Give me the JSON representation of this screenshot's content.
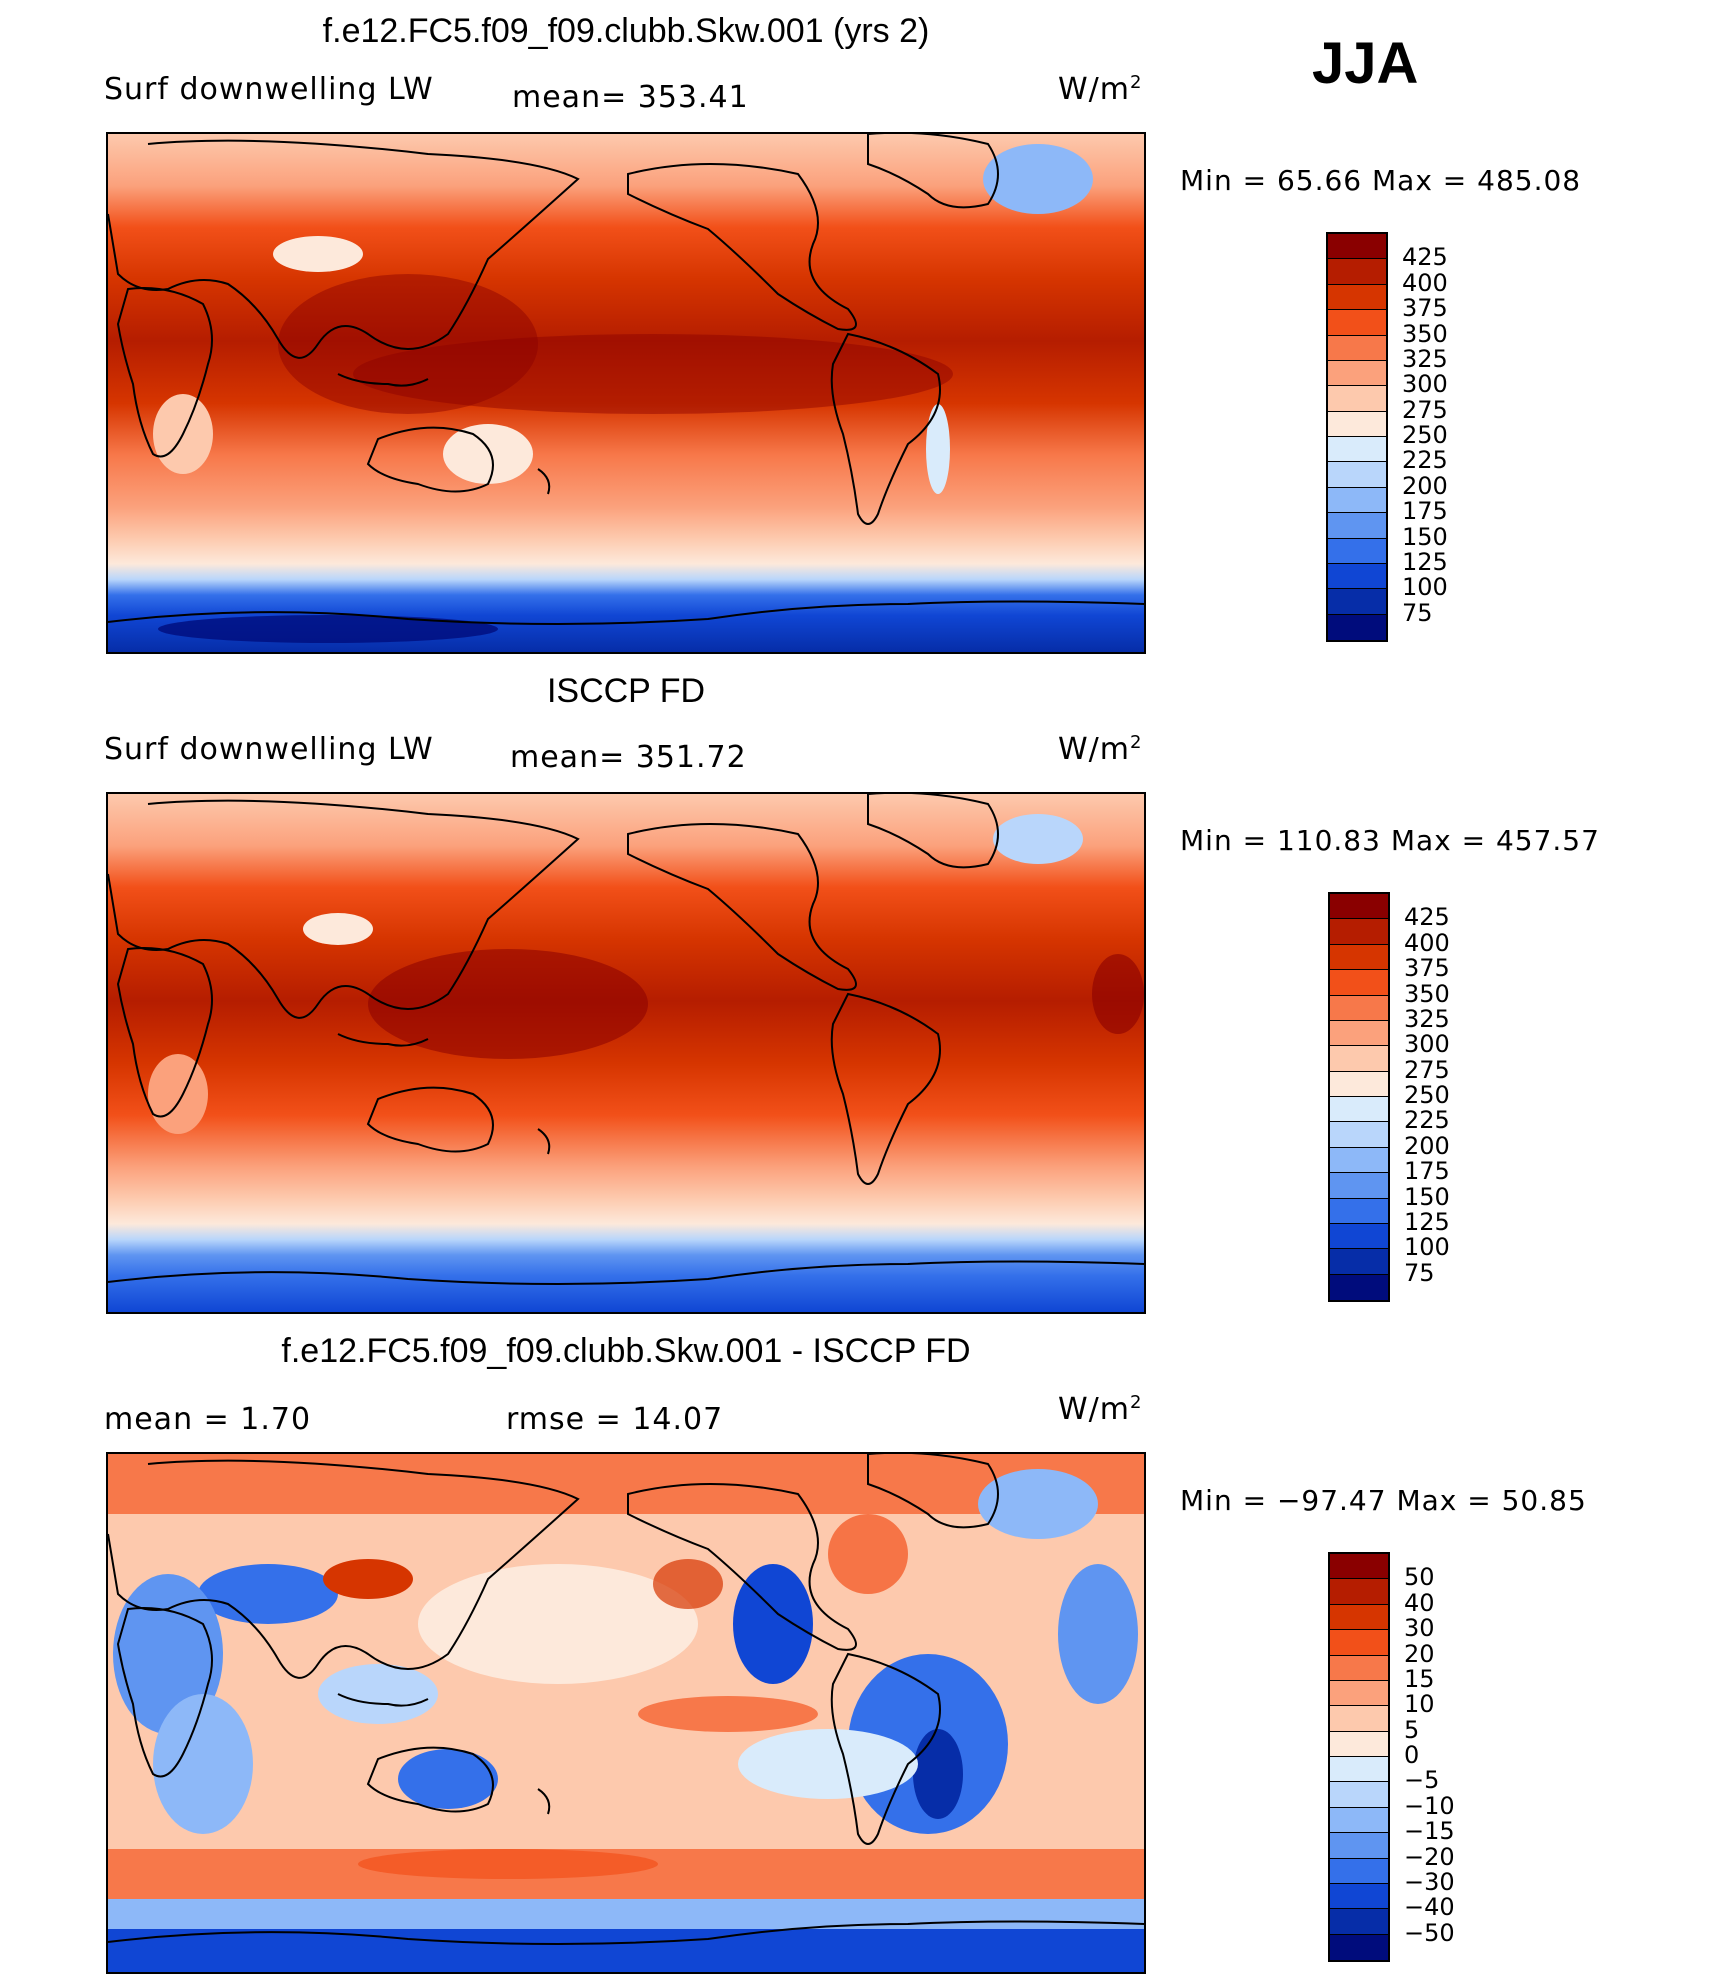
{
  "season": "JJA",
  "unit_text": "W/m",
  "unit_sup": "2",
  "panels": [
    {
      "title": "f.e12.FC5.f09_f09.clubb.Skw.001 (yrs 2)",
      "left_label": "Surf  downwelling  LW",
      "center_label": "mean=  353.41",
      "minmax": "Min  =    65.66  Max  =  485.08",
      "levels": [
        "425",
        "400",
        "375",
        "350",
        "325",
        "300",
        "275",
        "250",
        "225",
        "200",
        "175",
        "150",
        "125",
        "100",
        "75"
      ],
      "colors": [
        "#8a0000",
        "#b51d00",
        "#d63500",
        "#f25019",
        "#f7784a",
        "#fba17c",
        "#fdc9ad",
        "#fde9db",
        "#d9ebfb",
        "#b9d6fb",
        "#8db8f8",
        "#5f95f1",
        "#3470ea",
        "#1046d4",
        "#062da8",
        "#000c7c"
      ]
    },
    {
      "title": "ISCCP FD",
      "left_label": "Surf  downwelling  LW",
      "center_label": "mean=  351.72",
      "minmax": "Min  =  110.83  Max  =  457.57",
      "levels": [
        "425",
        "400",
        "375",
        "350",
        "325",
        "300",
        "275",
        "250",
        "225",
        "200",
        "175",
        "150",
        "125",
        "100",
        "75"
      ],
      "colors": [
        "#8a0000",
        "#b51d00",
        "#d63500",
        "#f25019",
        "#f7784a",
        "#fba17c",
        "#fdc9ad",
        "#fde9db",
        "#d9ebfb",
        "#b9d6fb",
        "#8db8f8",
        "#5f95f1",
        "#3470ea",
        "#1046d4",
        "#062da8",
        "#000c7c"
      ]
    },
    {
      "title": "f.e12.FC5.f09_f09.clubb.Skw.001 - ISCCP FD",
      "left_label": "mean  =      1.70",
      "center_label": "rmse  =      14.07",
      "minmax": "Min  =  −97.47  Max  =     50.85",
      "levels": [
        "50",
        "40",
        "30",
        "20",
        "15",
        "10",
        "5",
        "0",
        "−5",
        "−10",
        "−15",
        "−20",
        "−30",
        "−40",
        "−50"
      ],
      "colors": [
        "#8a0000",
        "#b51d00",
        "#d63500",
        "#f25019",
        "#f7784a",
        "#fba17c",
        "#fdc9ad",
        "#fde9db",
        "#d9ebfb",
        "#b9d6fb",
        "#8db8f8",
        "#5f95f1",
        "#3470ea",
        "#1046d4",
        "#062da8",
        "#000c7c"
      ]
    }
  ]
}
